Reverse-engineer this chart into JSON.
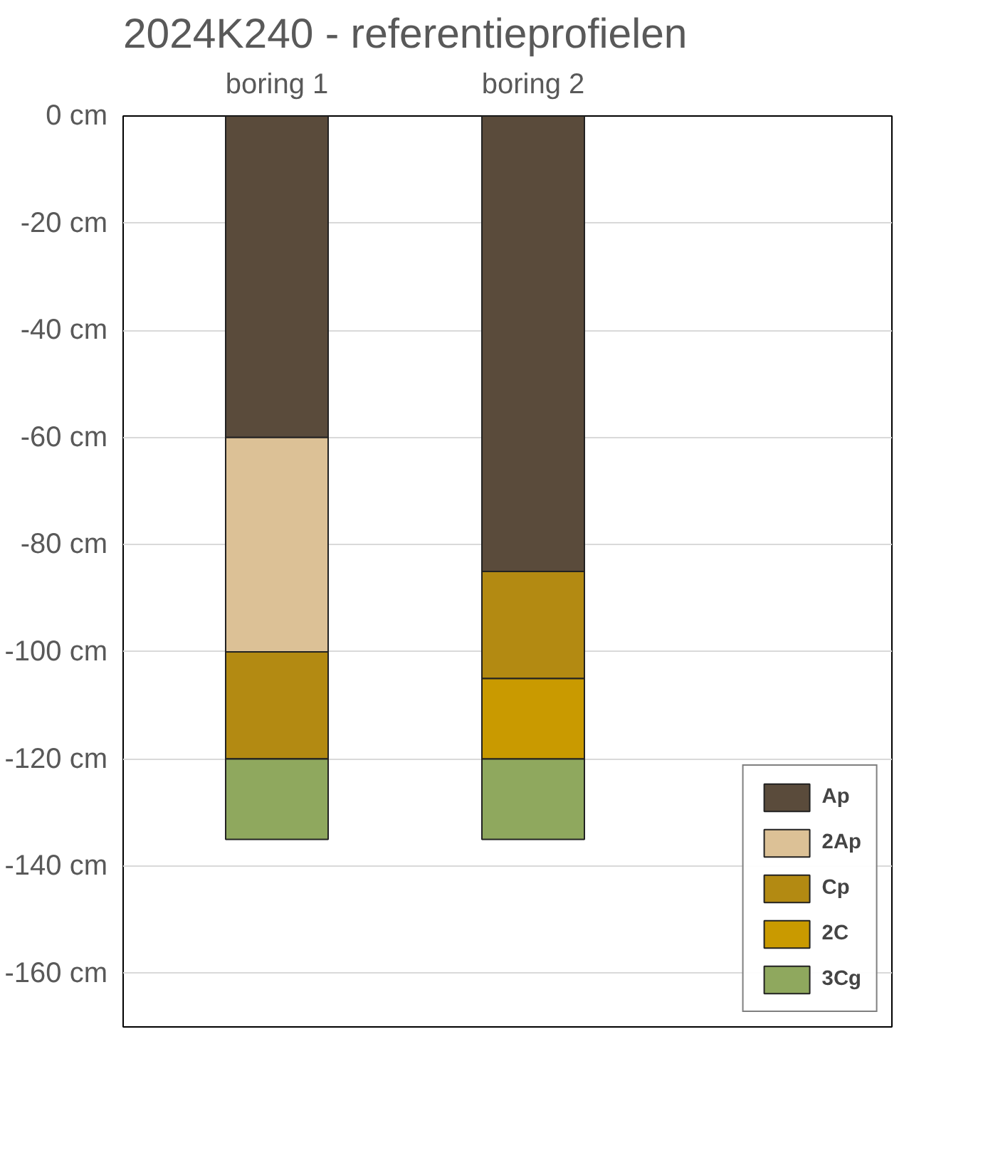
{
  "chart_data": {
    "type": "bar",
    "title": "2024K240 - referentieprofielen",
    "categories": [
      "boring 1",
      "boring 2"
    ],
    "stacked": true,
    "series": [
      {
        "name": "Ap",
        "color": "#5a4b3b",
        "values": [
          -60,
          -85
        ]
      },
      {
        "name": "2Ap",
        "color": "#dcc196",
        "values": [
          -40,
          0
        ]
      },
      {
        "name": "Cp",
        "color": "#b38a12",
        "values": [
          -20,
          -20
        ]
      },
      {
        "name": "2C",
        "color": "#c99a00",
        "values": [
          0,
          -15
        ]
      },
      {
        "name": "3Cg",
        "color": "#8fa85e",
        "values": [
          -15,
          -15
        ]
      }
    ],
    "ylim": [
      -170,
      0
    ],
    "yticks": [
      {
        "value": 0,
        "label": "0 cm"
      },
      {
        "value": -20,
        "label": "-20 cm"
      },
      {
        "value": -40,
        "label": "-40 cm"
      },
      {
        "value": -60,
        "label": "-60 cm"
      },
      {
        "value": -80,
        "label": "-80 cm"
      },
      {
        "value": -100,
        "label": "-100 cm"
      },
      {
        "value": -120,
        "label": "-120 cm"
      },
      {
        "value": -140,
        "label": "-140 cm"
      },
      {
        "value": -160,
        "label": "-160 cm"
      }
    ],
    "grid": "y",
    "legend": "bottom right"
  }
}
